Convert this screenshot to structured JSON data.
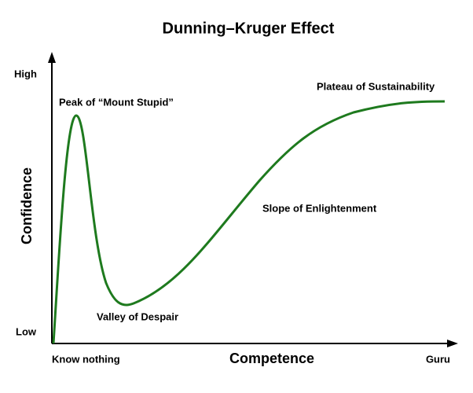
{
  "title": "Dunning–Kruger Effect",
  "y_axis": {
    "label": "Confidence",
    "top": "High",
    "bottom": "Low"
  },
  "x_axis": {
    "label": "Competence",
    "left": "Know nothing",
    "right": "Guru"
  },
  "annotations": [
    "Peak of “Mount Stupid”",
    "Valley of Despair",
    "Slope of Enlightenment",
    "Plateau of Sustainability"
  ]
}
